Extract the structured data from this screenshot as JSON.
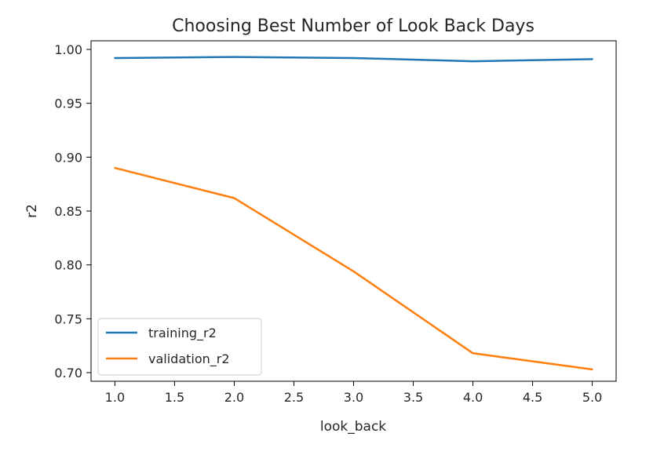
{
  "chart_data": {
    "type": "line",
    "title": "Choosing Best Number of Look Back Days",
    "xlabel": "look_back",
    "ylabel": "r2",
    "x": [
      1.0,
      2.0,
      3.0,
      4.0,
      5.0
    ],
    "xlim": [
      0.8,
      5.2
    ],
    "ylim": [
      0.692,
      1.008
    ],
    "xticks": [
      1.0,
      1.5,
      2.0,
      2.5,
      3.0,
      3.5,
      4.0,
      4.5,
      5.0
    ],
    "xtick_labels": [
      "1.0",
      "1.5",
      "2.0",
      "2.5",
      "3.0",
      "3.5",
      "4.0",
      "4.5",
      "5.0"
    ],
    "yticks": [
      0.7,
      0.75,
      0.8,
      0.85,
      0.9,
      0.95,
      1.0
    ],
    "ytick_labels": [
      "0.70",
      "0.75",
      "0.80",
      "0.85",
      "0.90",
      "0.95",
      "1.00"
    ],
    "grid": false,
    "legend_position": "lower-left",
    "series": [
      {
        "name": "training_r2",
        "color": "#1f77b4",
        "values": [
          0.992,
          0.993,
          0.992,
          0.989,
          0.991
        ]
      },
      {
        "name": "validation_r2",
        "color": "#ff7f0e",
        "values": [
          0.89,
          0.862,
          0.794,
          0.718,
          0.703
        ]
      }
    ]
  }
}
